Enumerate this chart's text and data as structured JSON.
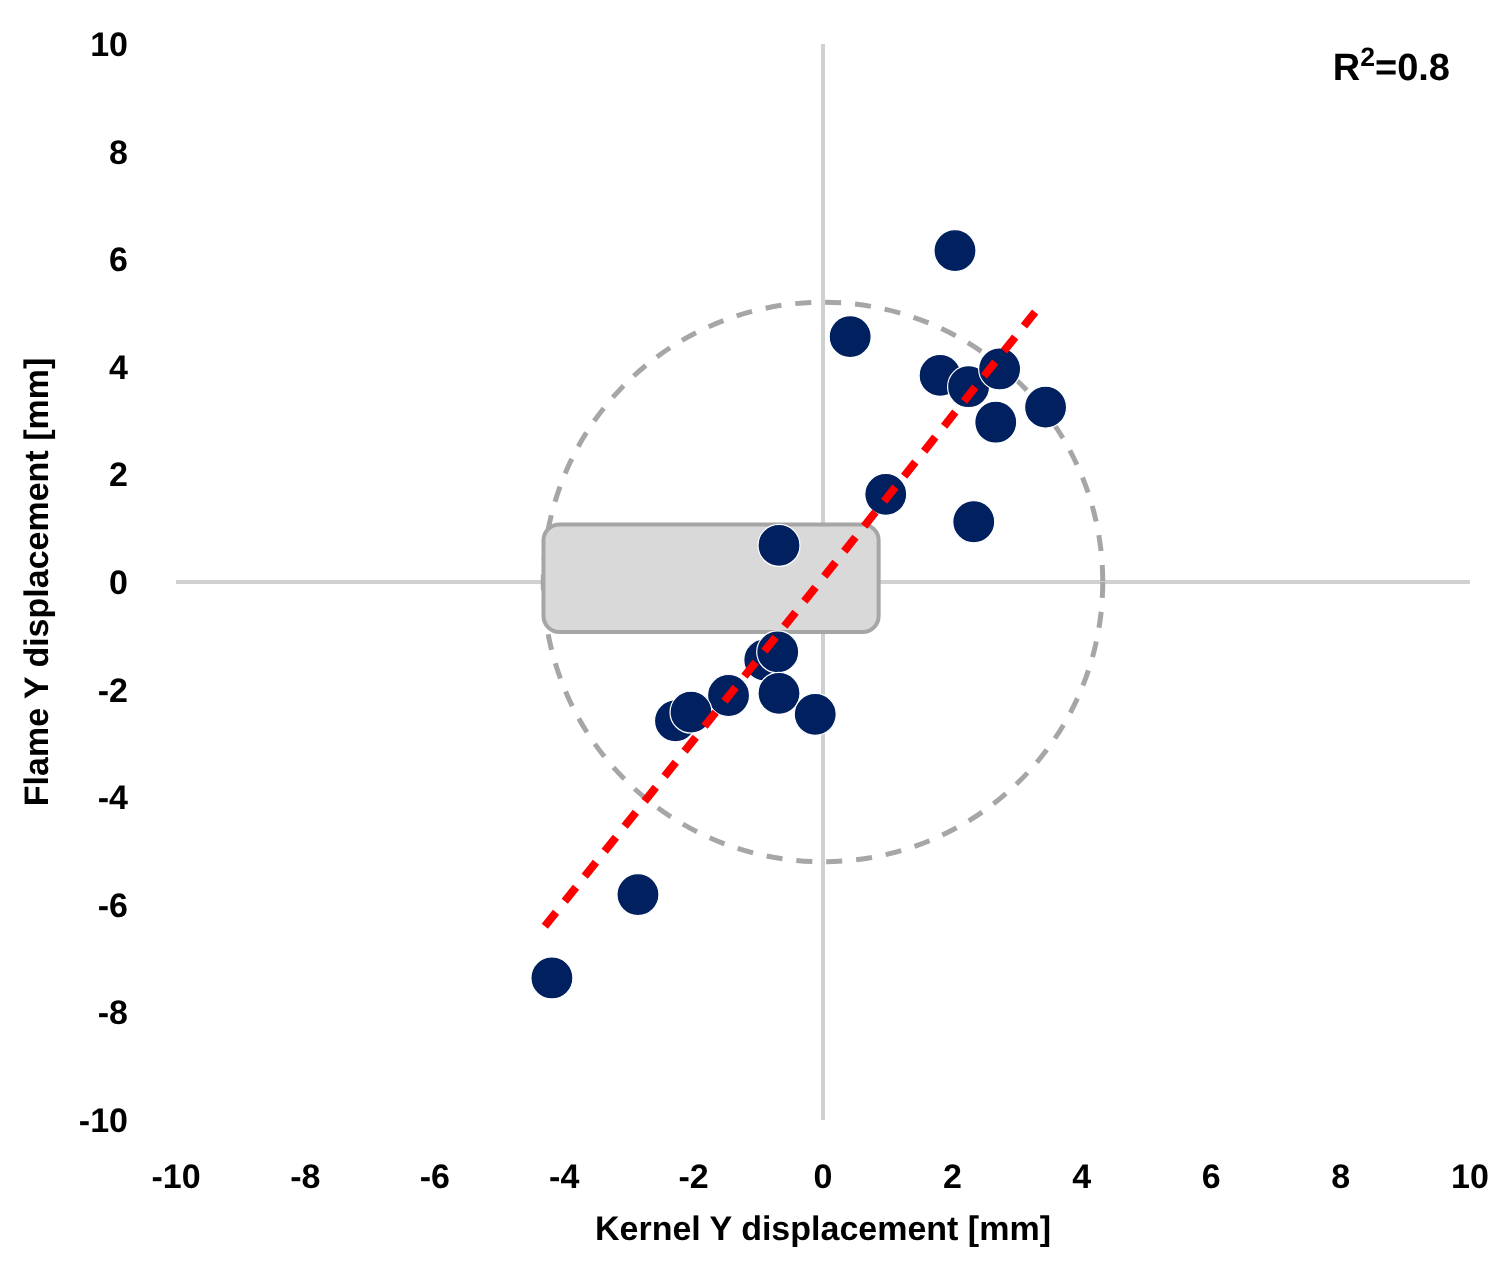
{
  "chart_data": {
    "type": "scatter",
    "xlabel": "Kernel Y displacement [mm]",
    "ylabel": "Flame Y displacement [mm]",
    "annotations": [
      "R$^{2}$=0.8"
    ],
    "xlim": [
      -10,
      10
    ],
    "xticks": [
      -10,
      -8,
      -6,
      -4,
      -2,
      0,
      2,
      4,
      6,
      8,
      10
    ],
    "ylim": [
      -10,
      10
    ],
    "yticks": [
      -10,
      -8,
      -6,
      -4,
      -2,
      0,
      2,
      4,
      6,
      8,
      10
    ],
    "marker": "circle",
    "series": [
      {
        "color": "#002060",
        "x": [
          2.04,
          0.42,
          1.81,
          2.25,
          2.73,
          2.67,
          3.44,
          0.97,
          2.33,
          -0.68,
          -0.9,
          -0.7,
          -1.46,
          -0.68,
          -0.12,
          -2.28,
          -2.04,
          -2.86,
          -4.19
        ],
        "values": [
          6.16,
          4.56,
          3.84,
          3.63,
          3.96,
          2.97,
          3.25,
          1.63,
          1.12,
          0.68,
          -1.45,
          -1.3,
          -2.11,
          -2.07,
          -2.46,
          -2.58,
          -2.42,
          -5.81,
          -7.36
        ]
      },
      {
        "type": "line",
        "color": "#ff0000",
        "line_style": "dashed",
        "marker": "none",
        "x": [
          -4.3,
          3.4
        ],
        "values": [
          -6.4,
          5.2
        ]
      }
    ]
  }
}
